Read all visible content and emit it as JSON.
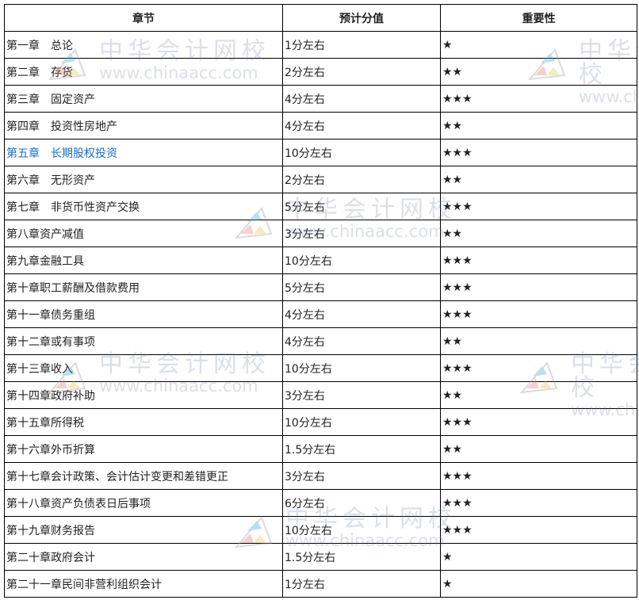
{
  "table": {
    "headers": [
      "章节",
      "预计分值",
      "重要性"
    ],
    "rows": [
      {
        "chapter": "第一章　总论",
        "score": "1分左右",
        "importance": "★"
      },
      {
        "chapter": "第二章　存货",
        "score": "2分左右",
        "importance": "★★"
      },
      {
        "chapter": "第三章　固定资产",
        "score": "4分左右",
        "importance": "★★★"
      },
      {
        "chapter": "第四章　投资性房地产",
        "score": "4分左右",
        "importance": "★★"
      },
      {
        "chapter": "第五章　长期股权投资",
        "score": "10分左右",
        "importance": "★★★",
        "link": true
      },
      {
        "chapter": "第六章　无形资产",
        "score": "2分左右",
        "importance": "★★"
      },
      {
        "chapter": "第七章　非货币性资产交换",
        "score": "5分左右",
        "importance": "★★★"
      },
      {
        "chapter": "第八章资产减值",
        "score": "3分左右",
        "importance": "★★"
      },
      {
        "chapter": "第九章金融工具",
        "score": "10分左右",
        "importance": "★★★"
      },
      {
        "chapter": "第十章职工薪酬及借款费用",
        "score": "5分左右",
        "importance": "★★★"
      },
      {
        "chapter": "第十一章债务重组",
        "score": "4分左右",
        "importance": "★★★"
      },
      {
        "chapter": "第十二章或有事项",
        "score": "4分左右",
        "importance": "★★"
      },
      {
        "chapter": "第十三章收入",
        "score": "10分左右",
        "importance": "★★★"
      },
      {
        "chapter": "第十四章政府补助",
        "score": "3分左右",
        "importance": "★★"
      },
      {
        "chapter": "第十五章所得税",
        "score": "10分左右",
        "importance": "★★★"
      },
      {
        "chapter": "第十六章外币折算",
        "score": "1.5分左右",
        "importance": "★★"
      },
      {
        "chapter": "第十七章会计政策、会计估计变更和差错更正",
        "score": "3分左右",
        "importance": "★★★"
      },
      {
        "chapter": "第十八章资产负债表日后事项",
        "score": "6分左右",
        "importance": "★★★"
      },
      {
        "chapter": "第十九章财务报告",
        "score": "10分左右",
        "importance": "★★★"
      },
      {
        "chapter": "第二十章政府会计",
        "score": "1.5分左右",
        "importance": "★"
      },
      {
        "chapter": "第二十一章民间非营利组织会计",
        "score": "1分左右",
        "importance": "★"
      }
    ]
  },
  "watermark": {
    "cn": "中华会计网校",
    "en": "www.chinaacc.com"
  },
  "colors": {
    "link": "#1a6fc9",
    "border": "#000000"
  }
}
